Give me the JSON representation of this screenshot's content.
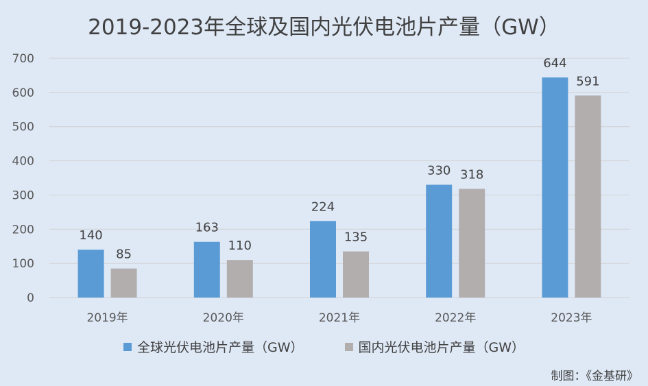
{
  "chart_data": {
    "type": "bar",
    "title": "2019-2023年全球及国内光伏电池片产量（GW）",
    "categories": [
      "2019年",
      "2020年",
      "2021年",
      "2022年",
      "2023年"
    ],
    "series": [
      {
        "name": "全球光伏电池片产量（GW）",
        "values": [
          140,
          163,
          224,
          330,
          644
        ],
        "color": "#5b9bd5"
      },
      {
        "name": "国内光伏电池片产量（GW）",
        "values": [
          85,
          110,
          135,
          318,
          591
        ],
        "color": "#b3aeae"
      }
    ],
    "ylim": [
      0,
      700
    ],
    "yticks": [
      0,
      100,
      200,
      300,
      400,
      500,
      600,
      700
    ],
    "grid": true,
    "legend_position": "bottom"
  },
  "source": "制图：《金基研》",
  "colors": {
    "background": "#dfe9f6",
    "grid": "#d0d0d0"
  }
}
